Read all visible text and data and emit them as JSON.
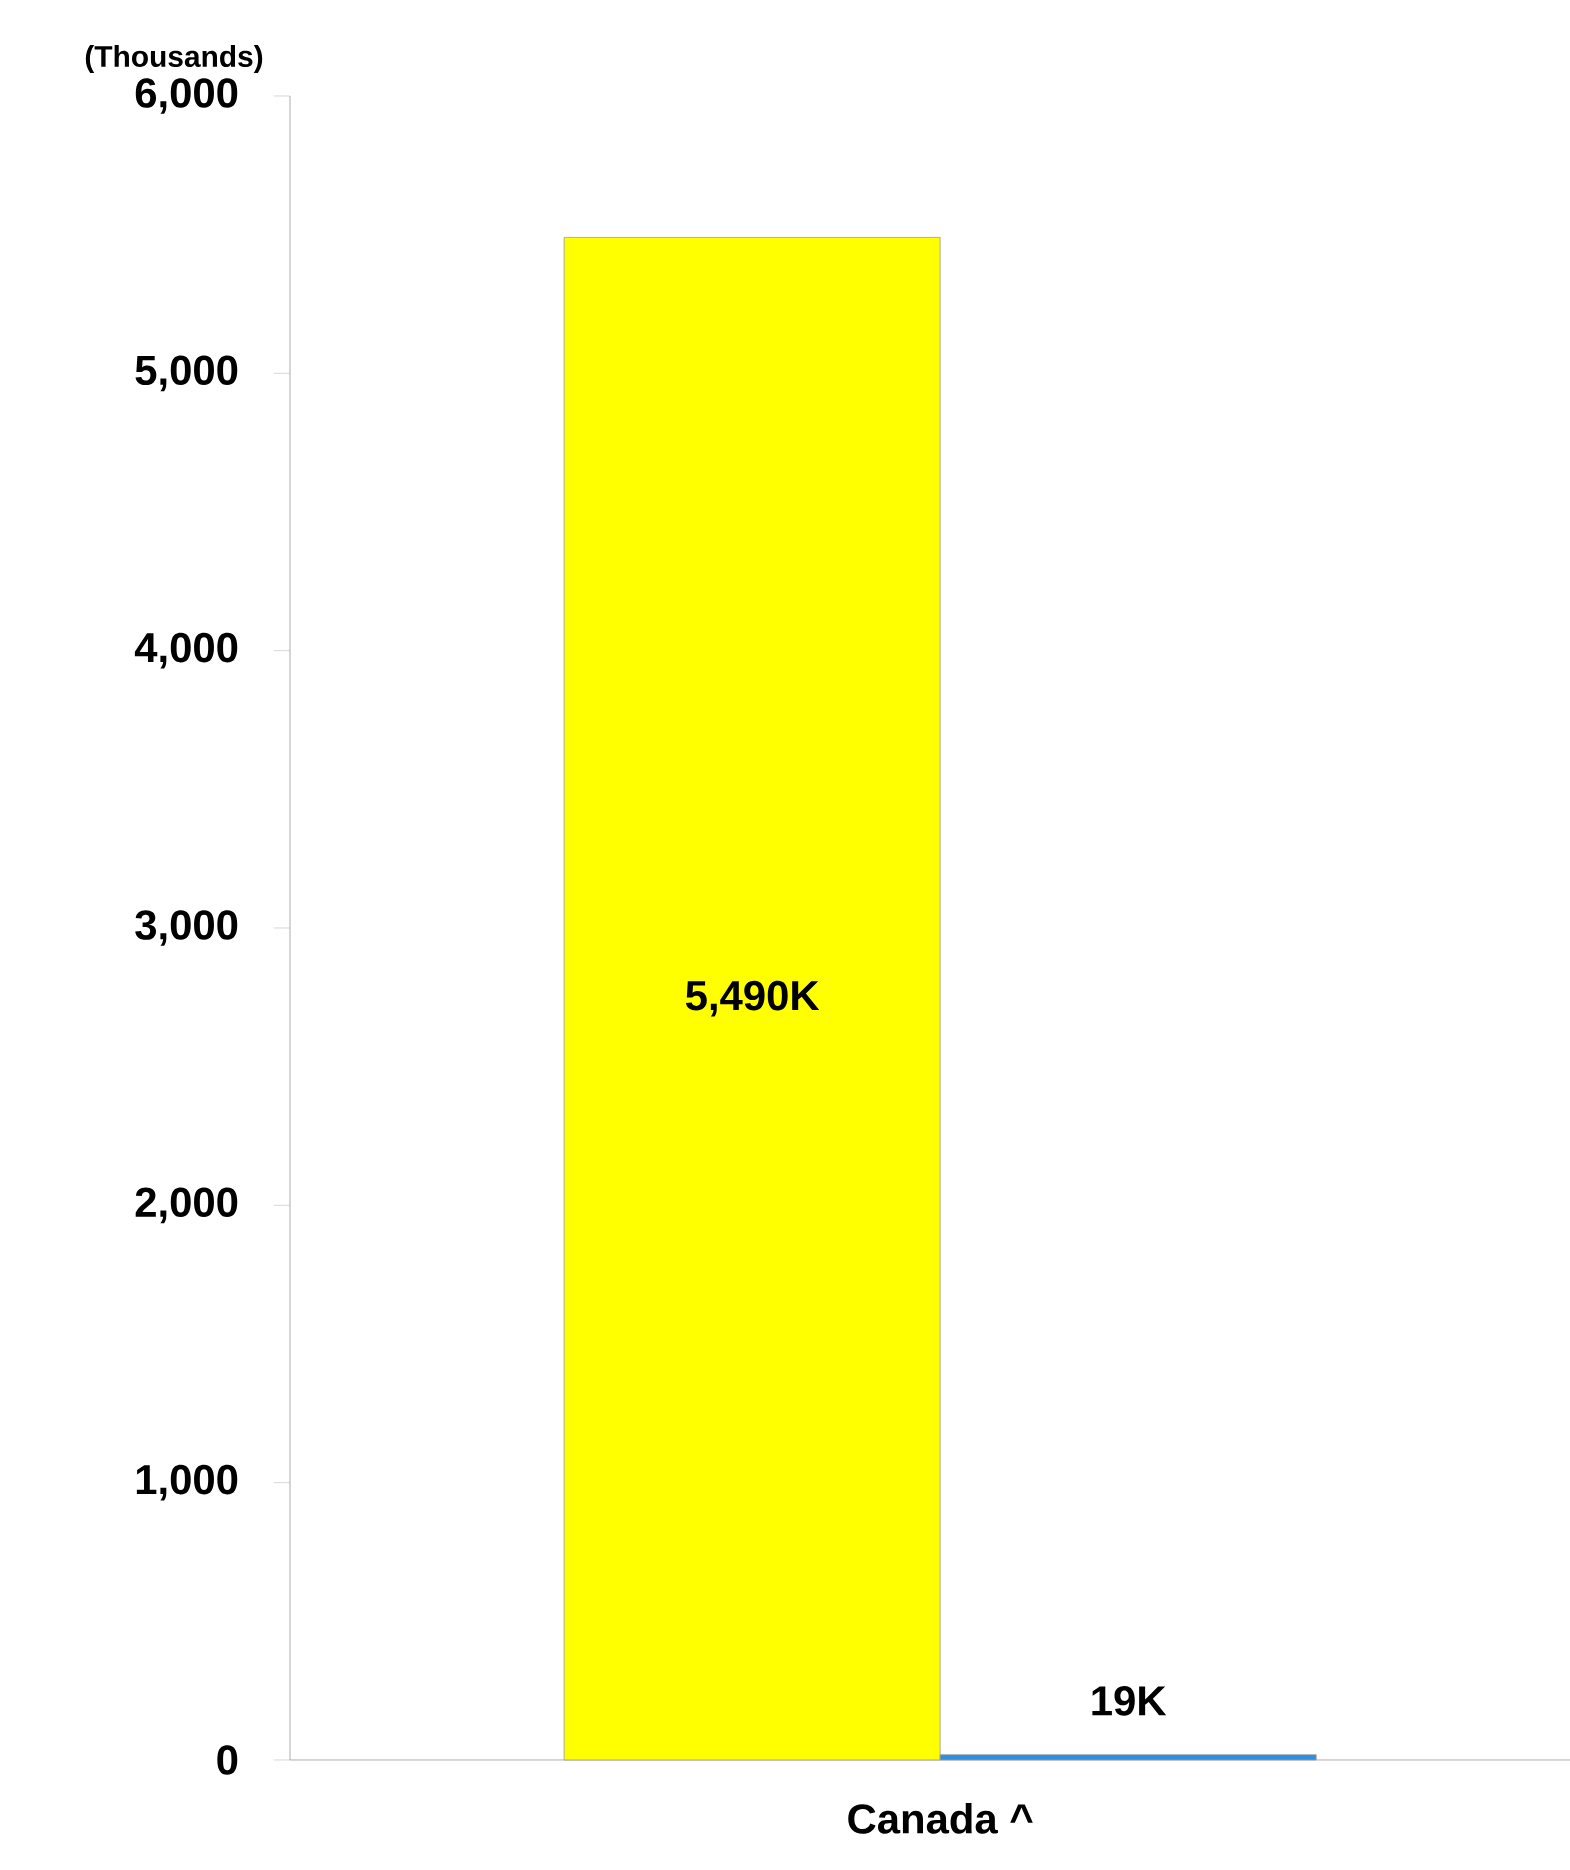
{
  "chart_data": {
    "type": "bar",
    "ylabel": "(Thousands)",
    "categories": [
      "Canada ^"
    ],
    "series": [
      {
        "color": "#ffff00",
        "values": [
          5490
        ],
        "value_labels": [
          "5,490K"
        ]
      },
      {
        "color": "#2e8fe0",
        "values": [
          19
        ],
        "value_labels": [
          "19K"
        ]
      }
    ],
    "ylim": [
      0,
      6000
    ],
    "yticks": [
      0,
      {
        "value": 1000,
        "label": "1,000"
      },
      {
        "value": 2000,
        "label": "2,000"
      },
      {
        "value": 3000,
        "label": "3,000"
      },
      {
        "value": 4000,
        "label": "4,000"
      },
      {
        "value": 5000,
        "label": "5,000"
      },
      {
        "value": 6000,
        "label": "6,000"
      }
    ],
    "grid": false
  }
}
